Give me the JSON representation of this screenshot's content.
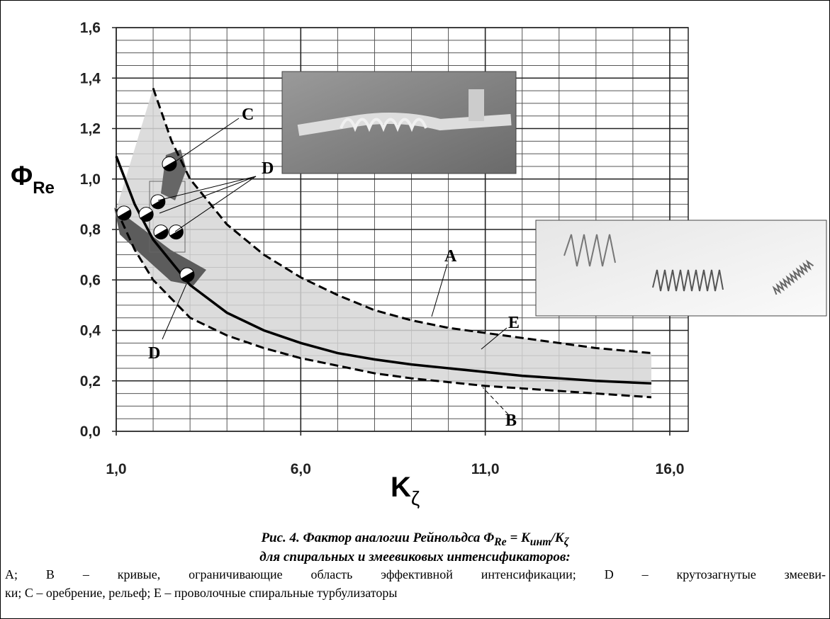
{
  "chart_data": {
    "type": "line",
    "x_label": {
      "main": "K",
      "sub": "ζ"
    },
    "y_label": {
      "main": "Φ",
      "sub": "Re"
    },
    "xlim": [
      1,
      16.5
    ],
    "ylim": [
      0,
      1.6
    ],
    "xticks": [
      {
        "value": 1,
        "label": "1,0"
      },
      {
        "value": 6,
        "label": "6,0"
      },
      {
        "value": 11,
        "label": "11,0"
      },
      {
        "value": 16,
        "label": "16,0"
      }
    ],
    "yticks": [
      {
        "value": 0,
        "label": "0,0"
      },
      {
        "value": 0.2,
        "label": "0,2"
      },
      {
        "value": 0.4,
        "label": "0,4"
      },
      {
        "value": 0.6,
        "label": "0,6"
      },
      {
        "value": 0.8,
        "label": "0,8"
      },
      {
        "value": 1.0,
        "label": "1,0"
      },
      {
        "value": 1.2,
        "label": "1,2"
      },
      {
        "value": 1.4,
        "label": "1,4"
      },
      {
        "value": 1.6,
        "label": "1,6"
      }
    ],
    "xgrid": [
      2,
      3,
      4,
      5,
      7,
      8,
      9,
      10,
      12,
      13,
      14,
      15,
      16.5
    ],
    "ygrid": [
      0.05,
      0.1,
      0.15,
      0.25,
      0.3,
      0.35,
      0.45,
      0.5,
      0.55,
      0.65,
      0.7,
      0.75,
      0.85,
      0.9,
      0.95,
      1.05,
      1.1,
      1.15,
      1.25,
      1.3,
      1.35,
      1.45,
      1.5,
      1.55
    ],
    "grid": true,
    "band_color": "#d6d6d6",
    "series": [
      {
        "name": "A",
        "color": "#000000",
        "style": "dashed",
        "x": [
          2,
          2.5,
          3,
          4,
          5,
          6,
          7,
          8,
          9,
          10,
          11,
          12,
          13,
          14,
          15.5
        ],
        "values": [
          1.36,
          1.15,
          1.0,
          0.82,
          0.7,
          0.61,
          0.54,
          0.48,
          0.44,
          0.41,
          0.39,
          0.37,
          0.35,
          0.33,
          0.31
        ]
      },
      {
        "name": "B",
        "color": "#000000",
        "style": "dashed",
        "x": [
          1,
          1.5,
          2,
          3,
          4,
          5,
          6,
          7,
          8,
          9,
          10,
          11,
          12,
          13,
          14,
          15.5
        ],
        "values": [
          0.88,
          0.72,
          0.6,
          0.45,
          0.38,
          0.33,
          0.29,
          0.26,
          0.23,
          0.21,
          0.195,
          0.18,
          0.17,
          0.16,
          0.15,
          0.135
        ]
      },
      {
        "name": "E",
        "color": "#000000",
        "style": "solid",
        "x": [
          1,
          1.5,
          2,
          3,
          4,
          5,
          6,
          7,
          8,
          9,
          10,
          11,
          12,
          13,
          14,
          15.5
        ],
        "values": [
          1.09,
          0.9,
          0.76,
          0.58,
          0.47,
          0.4,
          0.35,
          0.31,
          0.285,
          0.265,
          0.25,
          0.235,
          0.22,
          0.21,
          0.2,
          0.19
        ]
      }
    ],
    "markers": {
      "x": [
        2.44,
        2.13,
        1.81,
        1.21,
        2.21,
        2.62,
        2.92
      ],
      "values": [
        1.06,
        0.91,
        0.86,
        0.865,
        0.79,
        0.79,
        0.62
      ]
    },
    "annotations": [
      "C",
      "D",
      "D"
    ]
  },
  "caption": {
    "title_parts": [
      "Рис. 4. Фактор аналогии Рейнольдса Φ",
      "Re",
      " = K",
      "инт",
      "/K",
      "ζ"
    ],
    "title_line2": "для спиральных и змеевиковых интенсификаторов:",
    "legend_lines": [
      "A; B – кривые, ограничивающие область эффективной интенсификации; D – крутозагнутые змееви-",
      "ки; C – оребрение, рельеф; E – проволочные спиральные турбулизаторы"
    ]
  }
}
